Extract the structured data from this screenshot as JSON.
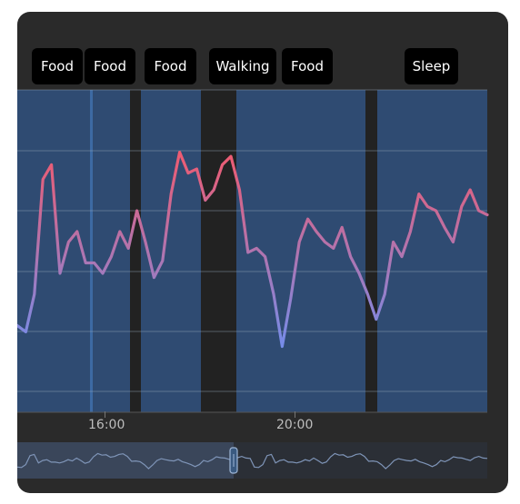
{
  "activities": [
    "Food",
    "Food",
    "Food",
    "Walking",
    "Food",
    "Sleep"
  ],
  "x_ticks": [
    "16:00",
    "20:00"
  ],
  "colors": {
    "card_bg": "#2a2a2a",
    "band_bg": "#2e4a6e",
    "line_low": "#6f8ff0",
    "line_high": "#f25a6e",
    "navigator_selected": "#3a465a"
  },
  "chart_data": {
    "type": "line",
    "title": "",
    "xlabel": "",
    "ylabel": "",
    "x_ticks": [
      "16:00",
      "20:00"
    ],
    "grid": true,
    "activity_bands": [
      "Food",
      "Food",
      "Food",
      "Walking",
      "Food",
      "Sleep"
    ],
    "series": [
      {
        "values": [
          0.15,
          0.12,
          0.3,
          0.85,
          0.92,
          0.4,
          0.55,
          0.6,
          0.45,
          0.45,
          0.4,
          0.48,
          0.6,
          0.52,
          0.7,
          0.55,
          0.38,
          0.46,
          0.78,
          0.98,
          0.88,
          0.9,
          0.75,
          0.8,
          0.92,
          0.96,
          0.8,
          0.5,
          0.52,
          0.48,
          0.3,
          0.05,
          0.28,
          0.55,
          0.66,
          0.6,
          0.55,
          0.52,
          0.62,
          0.48,
          0.4,
          0.3,
          0.18,
          0.3,
          0.55,
          0.48,
          0.6,
          0.78,
          0.72,
          0.7,
          0.62,
          0.55,
          0.72,
          0.8,
          0.7,
          0.68
        ]
      }
    ]
  }
}
